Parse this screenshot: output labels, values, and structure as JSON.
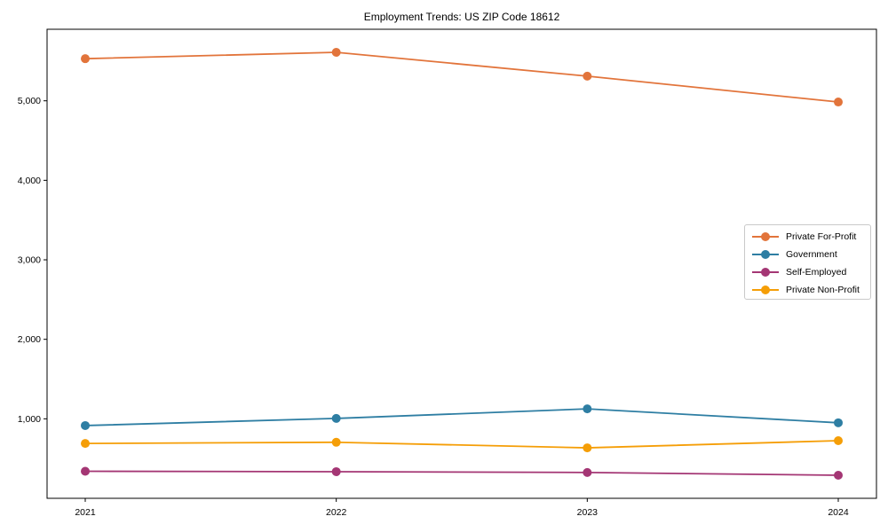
{
  "chart_data": {
    "type": "line",
    "title": "Employment Trends: US ZIP Code 18612",
    "xlabel": "",
    "ylabel": "",
    "x": [
      2021,
      2022,
      2023,
      2024
    ],
    "x_tick_labels": [
      "2021",
      "2022",
      "2023",
      "2024"
    ],
    "y_ticks": [
      1000,
      2000,
      3000,
      4000,
      5000
    ],
    "y_tick_labels": [
      "1,000",
      "2,000",
      "3,000",
      "4,000",
      "5,000"
    ],
    "ylim": [
      0,
      5900
    ],
    "grid": false,
    "legend_position": "center-right",
    "marker": "circle",
    "axis_color": "#000000",
    "background_color": "#ffffff",
    "series": [
      {
        "name": "Private For-Profit",
        "color": "#E2743B",
        "values": [
          5530,
          5610,
          5310,
          4985
        ]
      },
      {
        "name": "Government",
        "color": "#2E7EA3",
        "values": [
          915,
          1005,
          1125,
          950
        ]
      },
      {
        "name": "Self-Employed",
        "color": "#A43674",
        "values": [
          340,
          335,
          325,
          290
        ]
      },
      {
        "name": "Private Non-Profit",
        "color": "#F59E07",
        "values": [
          690,
          705,
          635,
          725
        ]
      }
    ]
  }
}
